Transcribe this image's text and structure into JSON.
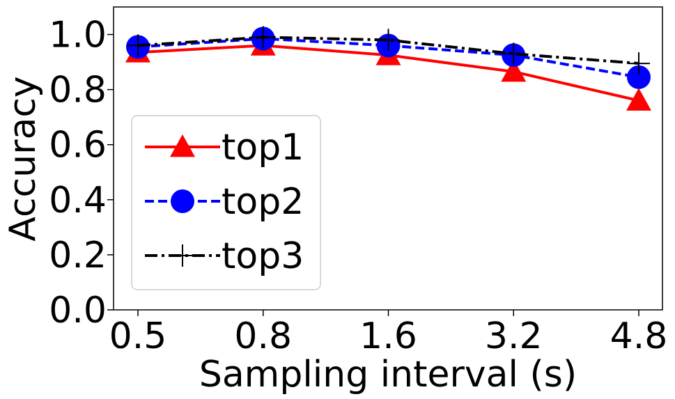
{
  "chart_data": {
    "type": "line",
    "xlabel": "Sampling interval (s)",
    "ylabel": "Accuracy",
    "categories": [
      "0.5",
      "0.8",
      "1.6",
      "3.2",
      "4.8"
    ],
    "ylim": [
      0,
      1.1
    ],
    "yticks": [
      "0.0",
      "0.2",
      "0.4",
      "0.6",
      "0.8",
      "1.0"
    ],
    "grid": false,
    "legend_position": "center-left",
    "series": [
      {
        "name": "top1",
        "values": [
          0.935,
          0.96,
          0.925,
          0.865,
          0.76
        ],
        "color": "#ff0000",
        "dash": "solid",
        "marker": "triangle-marker-icon"
      },
      {
        "name": "top2",
        "values": [
          0.955,
          0.985,
          0.96,
          0.925,
          0.845
        ],
        "color": "#0000ff",
        "dash": "dashed",
        "marker": "circle-marker-icon"
      },
      {
        "name": "top3",
        "values": [
          0.96,
          0.99,
          0.98,
          0.93,
          0.895
        ],
        "color": "#000000",
        "dash": "dashdot",
        "marker": "plus-marker-icon"
      }
    ]
  }
}
